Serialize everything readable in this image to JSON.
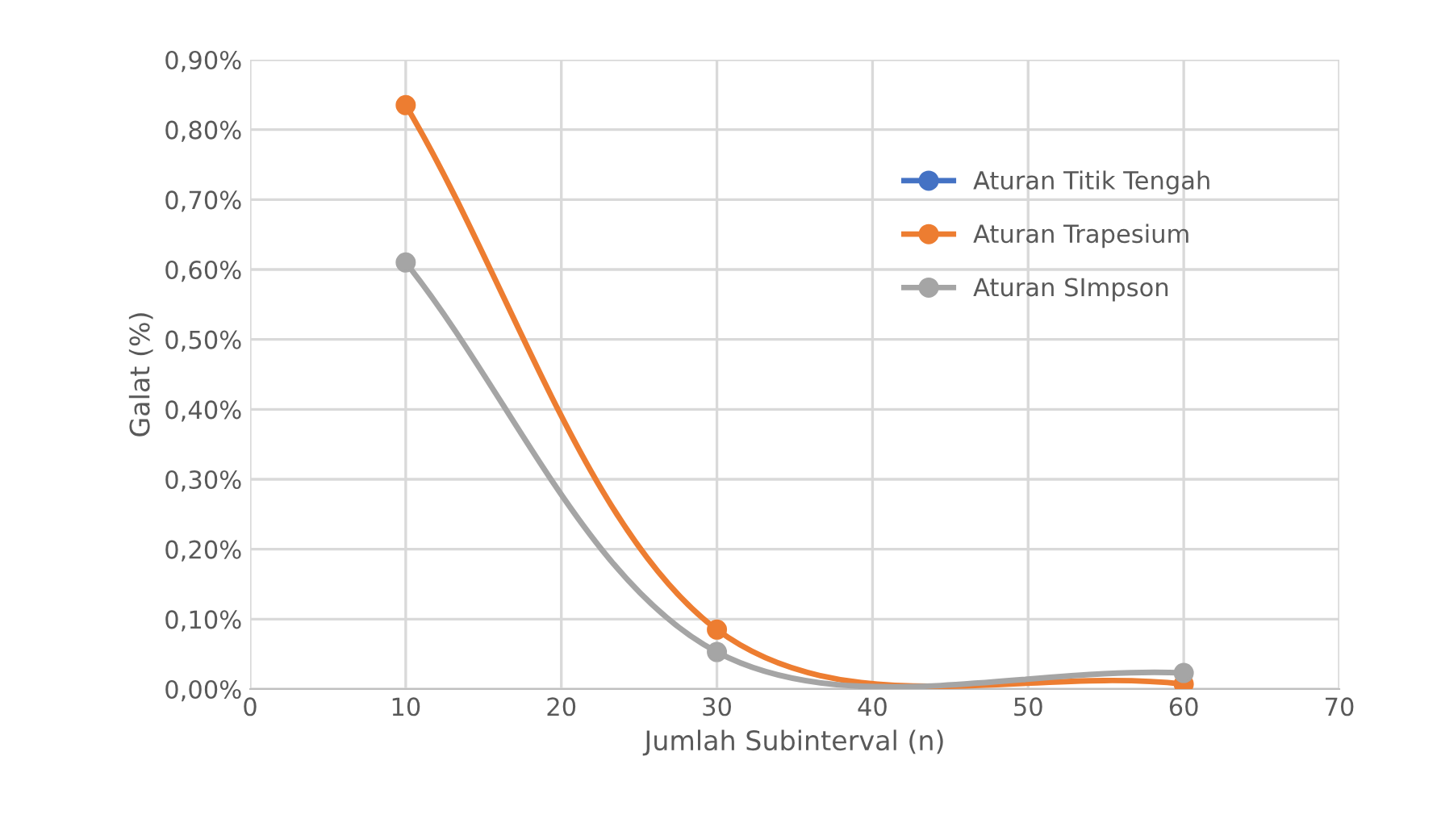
{
  "chart_data": {
    "type": "line",
    "xlabel": "Jumlah Subinterval (n)",
    "ylabel": "Galat (%)",
    "x": [
      10,
      30,
      60
    ],
    "series": [
      {
        "name": "Aturan Titik Tengah",
        "color": "#4472c4",
        "values": [
          null,
          null,
          null
        ]
      },
      {
        "name": "Aturan Trapesium",
        "color": "#ed7d31",
        "values": [
          0.835,
          0.085,
          0.007
        ]
      },
      {
        "name": "Aturan SImpson",
        "color": "#a5a5a5",
        "values": [
          0.61,
          0.053,
          0.023
        ]
      }
    ],
    "xlim": [
      0,
      70
    ],
    "xticks": [
      0,
      10,
      20,
      30,
      40,
      50,
      60,
      70
    ],
    "ylim": [
      0,
      0.9
    ],
    "yticks": [
      {
        "value": 0,
        "label": "0,00%"
      },
      {
        "value": 0.1,
        "label": "0,10%"
      },
      {
        "value": 0.2,
        "label": "0,20%"
      },
      {
        "value": 0.3,
        "label": "0,30%"
      },
      {
        "value": 0.4,
        "label": "0,40%"
      },
      {
        "value": 0.5,
        "label": "0,50%"
      },
      {
        "value": 0.6,
        "label": "0,60%"
      },
      {
        "value": 0.7,
        "label": "0,70%"
      },
      {
        "value": 0.8,
        "label": "0,80%"
      },
      {
        "value": 0.9,
        "label": "0,90%"
      }
    ],
    "grid": true,
    "legend": "right",
    "marker": "circle",
    "line_style": "solid"
  }
}
